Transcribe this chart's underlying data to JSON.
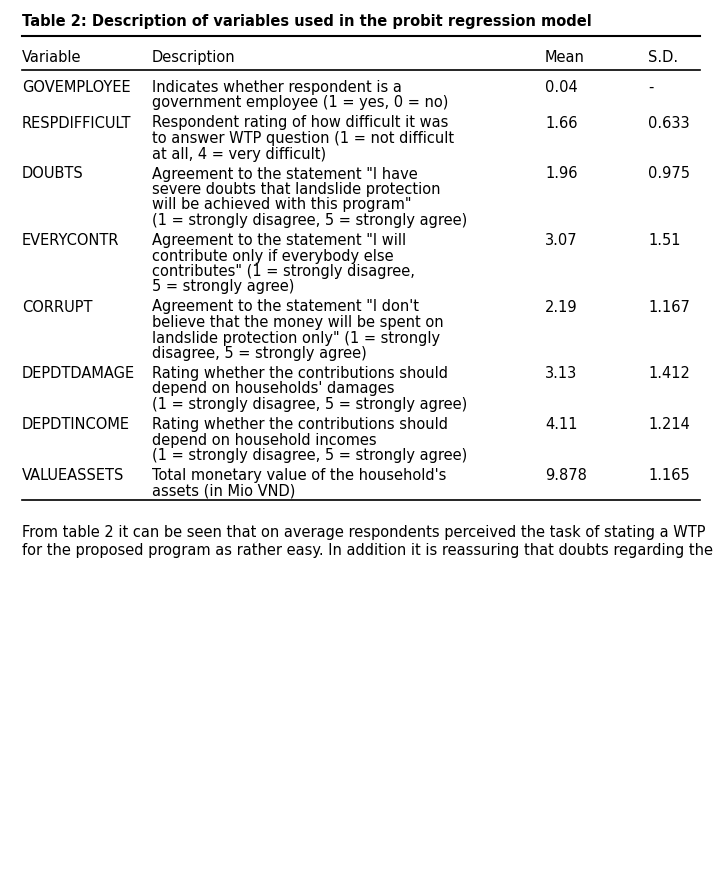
{
  "title": "Table 2: Description of variables used in the probit regression model",
  "columns": [
    "Variable",
    "Description",
    "Mean",
    "S.D."
  ],
  "rows": [
    {
      "variable": "GOVEMPLOYEE",
      "desc_lines": [
        "Indicates whether respondent is a",
        "government employee (1 = yes, 0 = no)"
      ],
      "mean": "0.04",
      "sd": "-"
    },
    {
      "variable": "RESPDIFFICULT",
      "desc_lines": [
        "Respondent rating of how difficult it was",
        "to answer WTP question (1 = not difficult",
        "at all, 4 = very difficult)"
      ],
      "mean": "1.66",
      "sd": "0.633"
    },
    {
      "variable": "DOUBTS",
      "desc_lines": [
        "Agreement to the statement \"I have",
        "severe doubts that landslide protection",
        "will be achieved with this program\"",
        "(1 = strongly disagree, 5 = strongly agree)"
      ],
      "mean": "1.96",
      "sd": "0.975"
    },
    {
      "variable": "EVERYCONTR",
      "desc_lines": [
        "Agreement to the statement \"I will",
        "contribute only if everybody else",
        "contributes\" (1 = strongly disagree,",
        "5 = strongly agree)"
      ],
      "mean": "3.07",
      "sd": "1.51"
    },
    {
      "variable": "CORRUPT",
      "desc_lines": [
        "Agreement to the statement \"I don't",
        "believe that the money will be spent on",
        "landslide protection only\" (1 = strongly",
        "disagree, 5 = strongly agree)"
      ],
      "mean": "2.19",
      "sd": "1.167"
    },
    {
      "variable": "DEPDTDAMAGE",
      "desc_lines": [
        "Rating whether the contributions should",
        "depend on households' damages",
        "(1 = strongly disagree, 5 = strongly agree)"
      ],
      "mean": "3.13",
      "sd": "1.412"
    },
    {
      "variable": "DEPDTINCOME",
      "desc_lines": [
        "Rating whether the contributions should",
        "depend on household incomes",
        "(1 = strongly disagree, 5 = strongly agree)"
      ],
      "mean": "4.11",
      "sd": "1.214"
    },
    {
      "variable": "VALUEASSETS",
      "desc_lines": [
        "Total monetary value of the household's",
        "assets (in Mio VND)"
      ],
      "mean": "9.878",
      "sd": "1.165"
    }
  ],
  "footer_lines": [
    "From table 2 it can be seen that on average respondents perceived the task of stating a WTP",
    "for the proposed program as rather easy. In addition it is reassuring that doubts regarding the"
  ],
  "bg_color": "#ffffff",
  "text_color": "#000000",
  "title_fontsize": 10.5,
  "header_fontsize": 10.5,
  "body_fontsize": 10.5,
  "footer_fontsize": 10.5
}
